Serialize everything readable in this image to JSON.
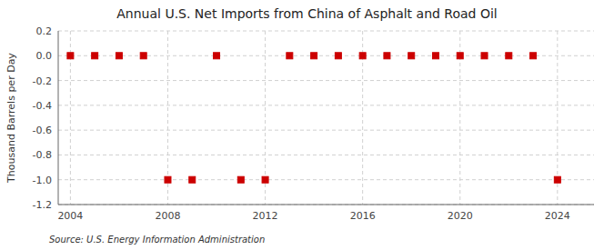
{
  "chart_data": {
    "type": "scatter",
    "title": "Annual U.S. Net Imports from China of Asphalt and Road Oil",
    "ylabel": "Thousand Barrels per Day",
    "annotations": [
      "Source: U.S. Energy Information Administration"
    ],
    "x": [
      2004,
      2005,
      2006,
      2007,
      2008,
      2009,
      2010,
      2011,
      2012,
      2013,
      2014,
      2015,
      2016,
      2017,
      2018,
      2019,
      2020,
      2021,
      2022,
      2023,
      2024
    ],
    "values": [
      0,
      0,
      0,
      0,
      -1,
      -1,
      0,
      -1,
      -1,
      0,
      0,
      0,
      0,
      0,
      0,
      0,
      0,
      0,
      0,
      0,
      -1
    ],
    "color": "#cc0000",
    "marker": "square",
    "xlim": [
      2003.5,
      2025.5
    ],
    "ylim": [
      -1.2,
      0.2
    ],
    "xticks": [
      2004,
      2008,
      2012,
      2016,
      2020,
      2024
    ],
    "yticks": [
      0.2,
      {
        "value": 0.0,
        "label": "0.0"
      },
      -0.2,
      -0.4,
      -0.6,
      -0.8,
      {
        "value": -1.0,
        "label": "-1.0"
      },
      -1.2
    ],
    "grid": true
  }
}
